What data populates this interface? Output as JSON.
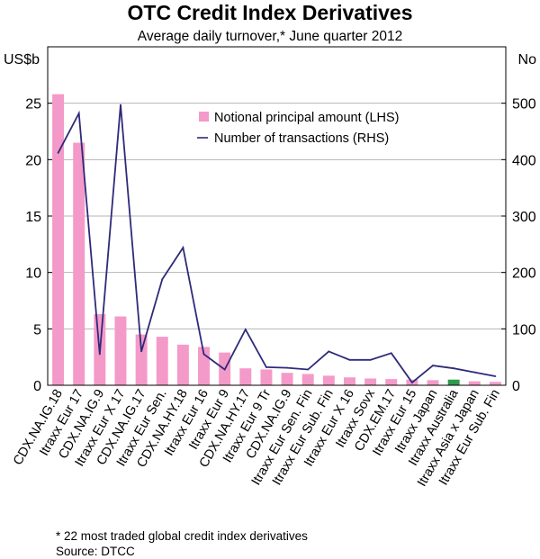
{
  "chart_data": {
    "type": "bar+line",
    "title": "OTC Credit Index Derivatives",
    "subtitle": "Average daily turnover,* June quarter 2012",
    "y_left_label": "US$b",
    "y_right_label": "No",
    "ylim_left": [
      0,
      30
    ],
    "ylim_right": [
      0,
      600
    ],
    "yticks_left": [
      0,
      5,
      10,
      15,
      20,
      25
    ],
    "yticks_right": [
      0,
      100,
      200,
      300,
      400,
      500
    ],
    "categories": [
      "CDX.NA.IG.18",
      "Itraxx Eur 17",
      "CDX.NA.IG.9",
      "Itraxx Eur X 17",
      "CDX.NA.IG.17",
      "Itraxx Eur Sen.",
      "CDX.NA.HY.18",
      "Itraxx Eur 16",
      "Itraxx Eur 9",
      "CDX.NA.HY.17",
      "Itraxx Eur 9 Tr",
      "CDX.NA.IG.9",
      "Itraxx Eur Sen. Fin",
      "Itraxx Eur Sub. Fin",
      "Itraxx Eur X 16",
      "Itraxx Sovx",
      "CDX.EM.17",
      "Itraxx Eur 15",
      "Itraxx Japan",
      "Itraxx Australia",
      "Itraxx Asia x Japan",
      "Itraxx Eur Sub. Fin"
    ],
    "highlight_index": 19,
    "series": [
      {
        "name": "Notional principal amount (LHS)",
        "type": "bar",
        "axis": "left",
        "color": "#f49ac9",
        "values": [
          25.8,
          21.5,
          6.3,
          6.1,
          4.5,
          4.3,
          3.6,
          3.4,
          2.9,
          1.5,
          1.4,
          1.1,
          1.0,
          0.85,
          0.7,
          0.6,
          0.55,
          0.5,
          0.45,
          0.5,
          0.35,
          0.3
        ]
      },
      {
        "name": "Number of transactions (RHS)",
        "type": "line",
        "axis": "right",
        "color": "#2e2a7a",
        "values": [
          412,
          482,
          55,
          497,
          60,
          188,
          244,
          55,
          28,
          99,
          32,
          31,
          28,
          60,
          45,
          45,
          57,
          5,
          35,
          30,
          23,
          16
        ]
      }
    ],
    "highlight_color": "#2e9a4a",
    "legend_position": "top-right"
  },
  "footnote": "*   22 most traded global credit index derivatives",
  "source": "Source: DTCC"
}
